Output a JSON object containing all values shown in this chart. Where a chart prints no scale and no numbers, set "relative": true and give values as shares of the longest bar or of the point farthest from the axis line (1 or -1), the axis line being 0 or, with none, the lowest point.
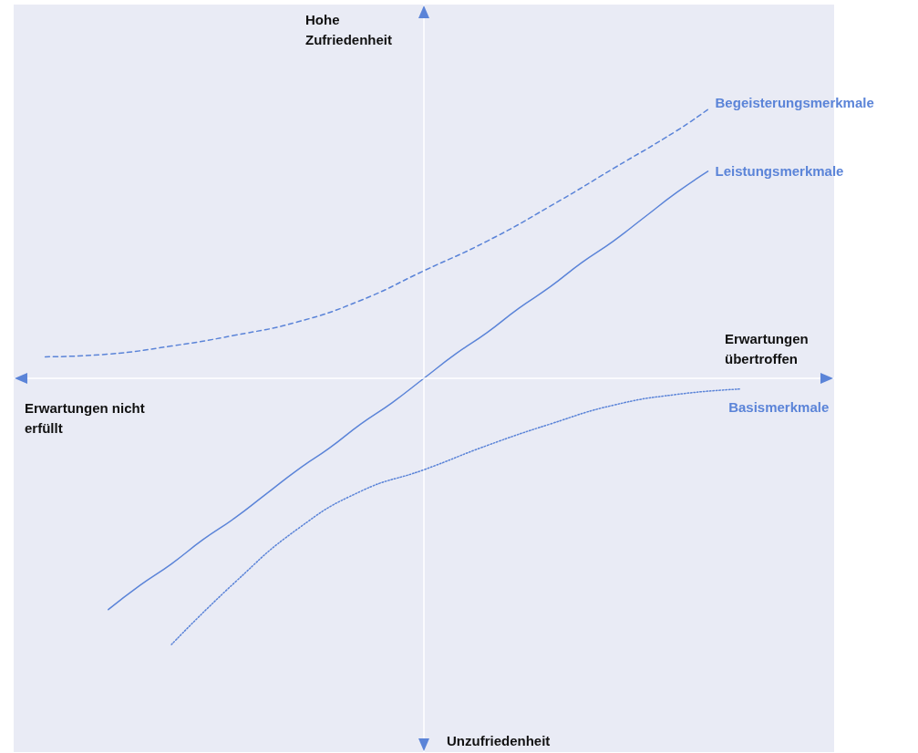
{
  "chart_data": {
    "type": "line",
    "relative": true,
    "marker": "none",
    "xlabel": "Erwartungen übertroffen",
    "ylabel": "Hohe Zufriedenheit",
    "annotations": [
      "Erwartungen nicht erfüllt",
      "Unzufriedenheit"
    ],
    "ref_lines": [
      {
        "axis": "y",
        "value": 0,
        "color": "#ffffff"
      }
    ],
    "categories": [
      null,
      null,
      null,
      null,
      null,
      null,
      null,
      null,
      null,
      null,
      null,
      null,
      null,
      null,
      null,
      null,
      null,
      null,
      null,
      null,
      null,
      null,
      null,
      null,
      null,
      null,
      null
    ],
    "series": [
      {
        "name": "Begeisterungsmerkmale",
        "color": "#5b84d8",
        "line_style": "dashed",
        "values": [
          null,
          0.08,
          null,
          0.09,
          null,
          0.12,
          null,
          0.16,
          null,
          0.21,
          null,
          0.29,
          null,
          0.4,
          null,
          0.51,
          null,
          0.64,
          null,
          0.78,
          null,
          0.92,
          1.0,
          null,
          null,
          null,
          null
        ]
      },
      {
        "name": "Leistungsmerkmale",
        "color": "#5b84d8",
        "line_style": "solid",
        "values": [
          null,
          null,
          null,
          -0.86,
          -0.77,
          -0.69,
          -0.6,
          -0.52,
          -0.43,
          -0.34,
          -0.26,
          -0.17,
          -0.09,
          0.0,
          0.09,
          0.17,
          0.26,
          0.34,
          0.43,
          0.51,
          0.6,
          0.69,
          0.77,
          null,
          null,
          null,
          null
        ]
      },
      {
        "name": "Basismerkmale",
        "color": "#5b84d8",
        "line_style": "dotted",
        "values": [
          null,
          null,
          null,
          null,
          null,
          -0.99,
          null,
          -0.76,
          null,
          -0.56,
          null,
          -0.42,
          null,
          -0.34,
          null,
          -0.25,
          null,
          -0.17,
          null,
          -0.1,
          null,
          -0.06,
          null,
          -0.04,
          null,
          null,
          null
        ]
      }
    ]
  }
}
